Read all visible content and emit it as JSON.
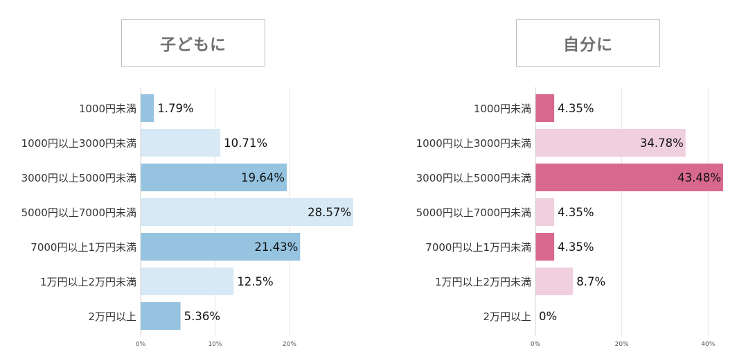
{
  "chart_data": [
    {
      "type": "bar",
      "orientation": "horizontal",
      "title": "子どもに",
      "categories": [
        "1000円未満",
        "1000円以上3000円未満",
        "3000円以上5000円未満",
        "5000円以上7000円未満",
        "7000円以上1万円未満",
        "1万円以上2万円未満",
        "2万円以上"
      ],
      "values": [
        1.79,
        10.71,
        19.64,
        28.57,
        21.43,
        12.5,
        5.36
      ],
      "value_labels": [
        "1.79%",
        "10.71%",
        "19.64%",
        "28.57%",
        "21.43%",
        "12.5%",
        "5.36%"
      ],
      "xticks": [
        "0%",
        "10%",
        "20%"
      ],
      "xlim": [
        0,
        28.57
      ],
      "grid": true,
      "colors": {
        "dark": "#95c3e0",
        "light": "#d6e9f4"
      }
    },
    {
      "type": "bar",
      "orientation": "horizontal",
      "title": "自分に",
      "categories": [
        "1000円未満",
        "1000円以上3000円未満",
        "3000円以上5000円未満",
        "5000円以上7000円未満",
        "7000円以上1万円未満",
        "1万円以上2万円未満",
        "2万円以上"
      ],
      "values": [
        4.35,
        34.78,
        43.48,
        4.35,
        4.35,
        8.7,
        0
      ],
      "value_labels": [
        "4.35%",
        "34.78%",
        "43.48%",
        "4.35%",
        "4.35%",
        "8.7%",
        "0%"
      ],
      "xticks": [
        "0%",
        "20%",
        "40%"
      ],
      "xlim": [
        0,
        43.48
      ],
      "grid": true,
      "colors": {
        "dark": "#d8688e",
        "light": "#f0d0de"
      }
    }
  ]
}
